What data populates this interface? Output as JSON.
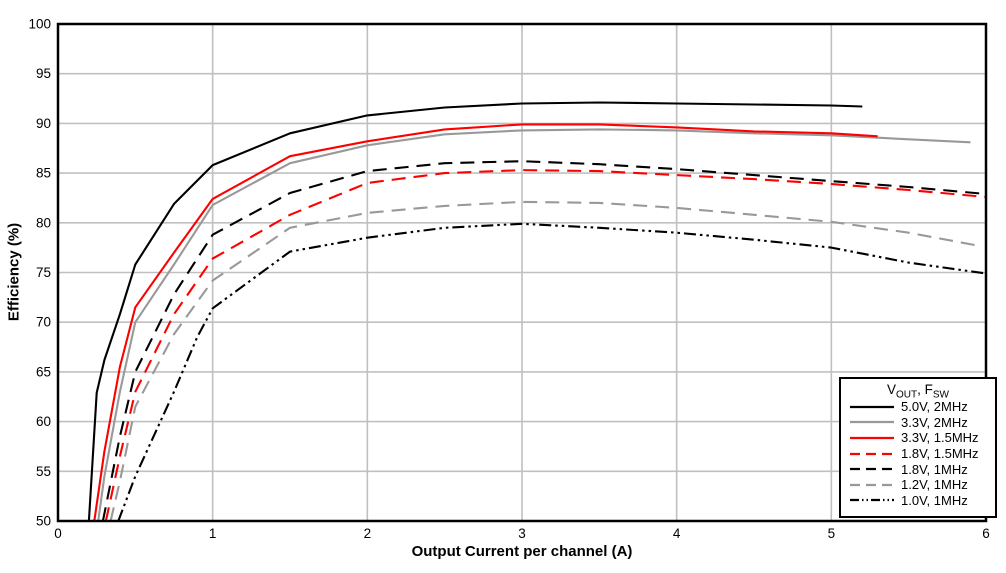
{
  "chart_data": {
    "type": "line",
    "title": "",
    "xlabel": "Output Current per channel (A)",
    "ylabel": "Efficiency (%)",
    "xlim": [
      0,
      6
    ],
    "ylim": [
      50,
      100
    ],
    "x_ticks": [
      0,
      1,
      2,
      3,
      4,
      5,
      6
    ],
    "y_ticks": [
      50,
      55,
      60,
      65,
      70,
      75,
      80,
      85,
      90,
      95,
      100
    ],
    "grid": true,
    "grid_color": "#c0c0c0",
    "border_color": "#000000",
    "legend_position": "lower right",
    "legend_title": {
      "pre": "V",
      "sub1": "OUT",
      "mid": ", F",
      "sub2": "SW"
    },
    "colors": {
      "black": "#000000",
      "gray": "#999999",
      "red": "#ff0000"
    },
    "series": [
      {
        "name": "5.0V, 2MHz",
        "color": "#000000",
        "style": "solid",
        "points": [
          [
            0.2,
            50
          ],
          [
            0.25,
            62.9
          ],
          [
            0.3,
            66.2
          ],
          [
            0.4,
            70.8
          ],
          [
            0.5,
            75.8
          ],
          [
            0.75,
            81.9
          ],
          [
            1,
            85.8
          ],
          [
            1.5,
            89.0
          ],
          [
            2,
            90.8
          ],
          [
            2.5,
            91.6
          ],
          [
            3,
            92.0
          ],
          [
            3.5,
            92.1
          ],
          [
            4,
            92.0
          ],
          [
            4.5,
            91.9
          ],
          [
            5,
            91.8
          ],
          [
            5.2,
            91.7
          ]
        ]
      },
      {
        "name": "3.3V, 2MHz",
        "color": "#999999",
        "style": "solid",
        "points": [
          [
            0.26,
            50
          ],
          [
            0.3,
            54.5
          ],
          [
            0.4,
            63.0
          ],
          [
            0.5,
            70.0
          ],
          [
            0.75,
            75.8
          ],
          [
            1,
            81.8
          ],
          [
            1.5,
            86.0
          ],
          [
            2,
            87.8
          ],
          [
            2.5,
            88.9
          ],
          [
            3,
            89.3
          ],
          [
            3.5,
            89.4
          ],
          [
            4,
            89.3
          ],
          [
            4.5,
            89.0
          ],
          [
            5,
            88.8
          ],
          [
            5.5,
            88.4
          ],
          [
            5.9,
            88.1
          ]
        ]
      },
      {
        "name": "3.3V, 1.5MHz",
        "color": "#ff0000",
        "style": "solid",
        "points": [
          [
            0.235,
            50
          ],
          [
            0.3,
            57.0
          ],
          [
            0.4,
            65.5
          ],
          [
            0.5,
            71.5
          ],
          [
            0.75,
            77.0
          ],
          [
            1,
            82.4
          ],
          [
            1.5,
            86.7
          ],
          [
            2,
            88.2
          ],
          [
            2.5,
            89.4
          ],
          [
            3,
            89.9
          ],
          [
            3.5,
            89.9
          ],
          [
            4,
            89.6
          ],
          [
            4.5,
            89.2
          ],
          [
            5,
            89.0
          ],
          [
            5.3,
            88.7
          ]
        ]
      },
      {
        "name": "1.8V, 1.5MHz",
        "color": "#ff0000",
        "style": "dash",
        "points": [
          [
            0.31,
            50
          ],
          [
            0.4,
            56.5
          ],
          [
            0.5,
            63.0
          ],
          [
            0.75,
            70.8
          ],
          [
            1,
            76.4
          ],
          [
            1.5,
            80.8
          ],
          [
            2,
            84.0
          ],
          [
            2.5,
            85.0
          ],
          [
            3,
            85.3
          ],
          [
            3.5,
            85.2
          ],
          [
            4,
            84.8
          ],
          [
            4.5,
            84.4
          ],
          [
            5,
            83.9
          ],
          [
            5.5,
            83.3
          ],
          [
            6,
            82.6
          ]
        ]
      },
      {
        "name": "1.8V, 1MHz",
        "color": "#000000",
        "style": "dash",
        "points": [
          [
            0.29,
            50
          ],
          [
            0.4,
            58.5
          ],
          [
            0.5,
            65.0
          ],
          [
            0.75,
            72.8
          ],
          [
            1,
            78.8
          ],
          [
            1.5,
            83.0
          ],
          [
            2,
            85.2
          ],
          [
            2.5,
            86.0
          ],
          [
            3,
            86.2
          ],
          [
            3.5,
            85.9
          ],
          [
            4,
            85.4
          ],
          [
            4.5,
            84.8
          ],
          [
            5,
            84.2
          ],
          [
            5.5,
            83.6
          ],
          [
            6,
            82.9
          ]
        ]
      },
      {
        "name": "1.2V, 1MHz",
        "color": "#999999",
        "style": "dash",
        "points": [
          [
            0.34,
            50
          ],
          [
            0.4,
            54.0
          ],
          [
            0.5,
            61.5
          ],
          [
            0.75,
            68.8
          ],
          [
            1,
            74.2
          ],
          [
            1.5,
            79.5
          ],
          [
            2,
            81.0
          ],
          [
            2.5,
            81.7
          ],
          [
            3,
            82.1
          ],
          [
            3.5,
            82.0
          ],
          [
            4,
            81.5
          ],
          [
            4.5,
            80.8
          ],
          [
            5,
            80.1
          ],
          [
            5.5,
            79.0
          ],
          [
            5.95,
            77.7
          ]
        ]
      },
      {
        "name": "1.0V, 1MHz",
        "color": "#000000",
        "style": "dashdotdot",
        "points": [
          [
            0.39,
            50
          ],
          [
            0.5,
            54.5
          ],
          [
            0.75,
            63.0
          ],
          [
            0.9,
            68.5
          ],
          [
            1,
            71.4
          ],
          [
            1.5,
            77.1
          ],
          [
            2,
            78.5
          ],
          [
            2.5,
            79.5
          ],
          [
            3,
            79.9
          ],
          [
            3.5,
            79.5
          ],
          [
            4,
            79.0
          ],
          [
            4.5,
            78.3
          ],
          [
            5,
            77.5
          ],
          [
            5.5,
            76.0
          ],
          [
            6,
            74.9
          ]
        ]
      }
    ]
  }
}
